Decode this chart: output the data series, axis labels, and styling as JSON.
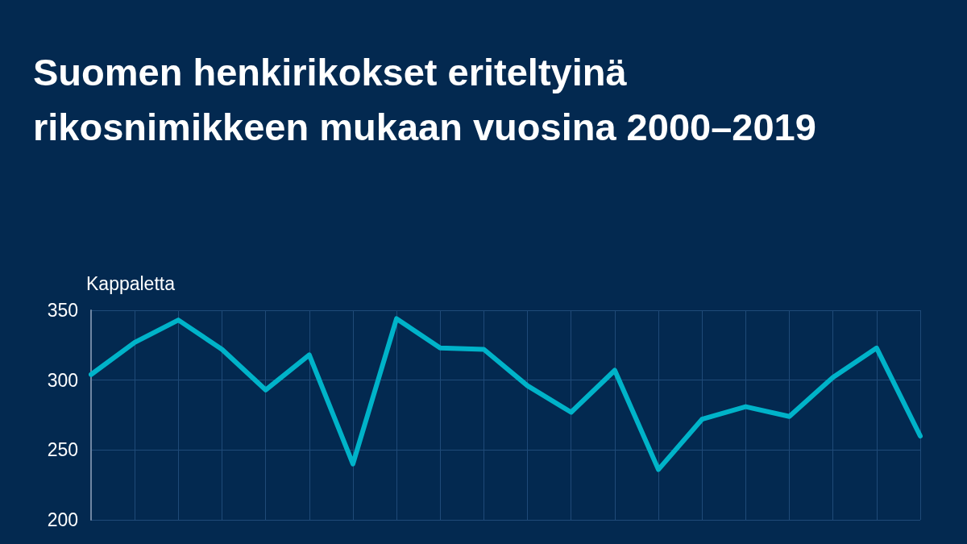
{
  "chart_data": {
    "type": "line",
    "title": "Suomen henkirikokset eriteltyinä rikosnimikkeen mukaan vuosina 2000–2019",
    "ylabel": "Kappaletta",
    "categories": [
      null,
      null,
      null,
      null,
      null,
      null,
      null,
      null,
      null,
      null,
      null,
      null,
      null,
      null,
      null,
      null,
      null,
      null,
      null,
      null
    ],
    "series": [
      {
        "color": "#00b3c9",
        "values": [
          304,
          327,
          343,
          322,
          293,
          318,
          240,
          344,
          323,
          322,
          296,
          277,
          307,
          236,
          272,
          281,
          274,
          302,
          323,
          260
        ]
      }
    ],
    "ylim": [
      200,
      350
    ],
    "yticks": [
      200,
      250,
      300,
      350
    ],
    "grid": true,
    "marker": "none",
    "line_style": "solid"
  }
}
